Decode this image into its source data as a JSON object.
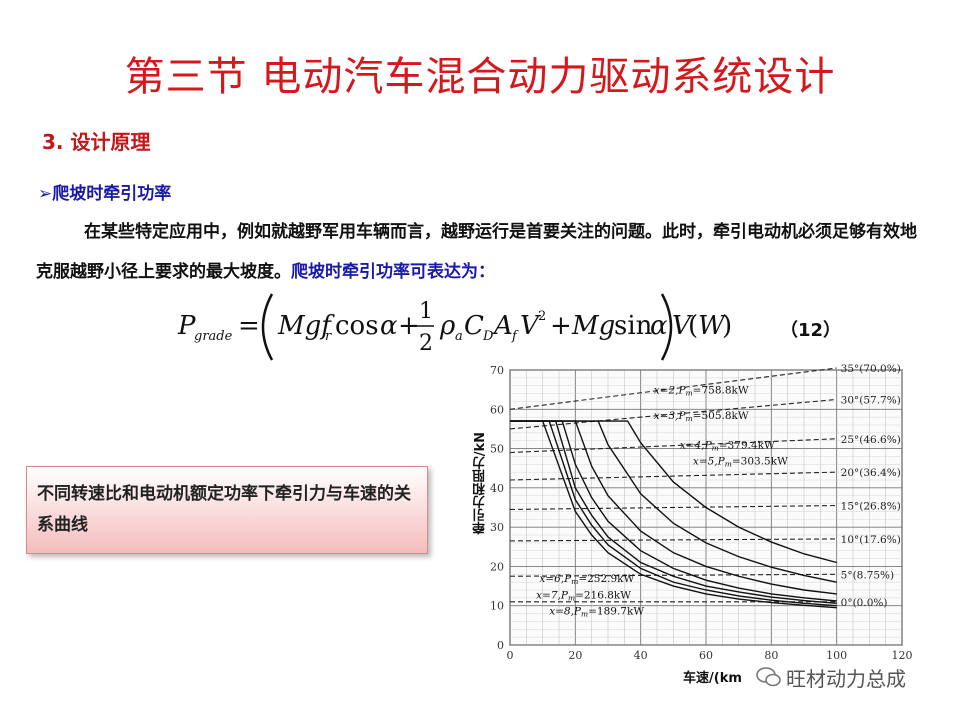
{
  "slide": {
    "title": "第三节  电动汽车混合动力驱动系统设计",
    "section": "3. 设计原理",
    "subhead": "爬坡时牵引功率",
    "para_main": "在某些特定应用中，例如就越野军用车辆而言，越野运行是首要关注的问题。此时，牵引电动机必须足够有效地克服越野小径上要求的最大坡度。",
    "para_highlight": "爬坡时牵引功率可表达为：",
    "eq_number": "（12）",
    "callout": "不同转速比和电动机额定功率下牵引力与车速的关系曲线",
    "watermark": "旺材动力总成",
    "colors": {
      "title": "#d6171b",
      "highlight": "#1a1aa8",
      "callout_bottom": "#f4bcbc"
    },
    "icons": [
      "bullet-arrow-icon",
      "wechat-icon"
    ]
  },
  "chart_data": {
    "type": "line",
    "xlabel": "车速/(km",
    "ylabel": "牵引力和阻力/kN",
    "xlim": [
      0,
      120
    ],
    "ylim": [
      0,
      70
    ],
    "xticks": [
      "0",
      "20",
      "40",
      "60",
      "80",
      "100",
      "120"
    ],
    "yticks": [
      "0",
      "10",
      "20",
      "30",
      "40",
      "50",
      "60",
      "70"
    ],
    "grid": true,
    "traction_series": [
      {
        "label": "x=2,P",
        "label_sub": "m",
        "label_rest": "=758.8kW",
        "x": [
          0,
          36,
          40,
          50,
          60,
          70,
          80,
          90,
          100
        ],
        "y": [
          57,
          57,
          51.5,
          41.5,
          35,
          30,
          26.2,
          23.2,
          21
        ]
      },
      {
        "label": "x=3,P",
        "label_sub": "m",
        "label_rest": "=505.8kW",
        "x": [
          0,
          27,
          30,
          40,
          50,
          60,
          70,
          80,
          90,
          100
        ],
        "y": [
          57,
          57,
          51,
          38.5,
          31,
          26,
          22.5,
          19.8,
          17.7,
          16
        ]
      },
      {
        "label": "x=4,P",
        "label_sub": "m",
        "label_rest": "=379.4kW",
        "x": [
          0,
          20,
          25,
          30,
          40,
          50,
          60,
          70,
          80,
          90,
          100
        ],
        "y": [
          57,
          57,
          45.5,
          38,
          29,
          23.5,
          20,
          17.5,
          15.5,
          14,
          13
        ]
      },
      {
        "label": "x=5,P",
        "label_sub": "m",
        "label_rest": "=303.5kW",
        "x": [
          0,
          16,
          20,
          25,
          30,
          40,
          50,
          60,
          70,
          80,
          90,
          100
        ],
        "y": [
          57,
          57,
          46,
          37.5,
          31.5,
          24,
          19.5,
          16.5,
          14.5,
          13,
          12,
          11.2
        ]
      },
      {
        "label": "x=6,P",
        "label_sub": "m",
        "label_rest": "=252.9kW",
        "x": [
          0,
          14,
          20,
          25,
          30,
          40,
          50,
          60,
          70,
          80,
          90,
          100
        ],
        "y": [
          57,
          57,
          40,
          33,
          27.5,
          21,
          17.5,
          15,
          13.5,
          12.2,
          11.3,
          10.6
        ]
      },
      {
        "label": "x=7,P",
        "label_sub": "m",
        "label_rest": "=216.8kW",
        "x": [
          0,
          12,
          20,
          25,
          30,
          40,
          50,
          60,
          70,
          80,
          90,
          100
        ],
        "y": [
          57,
          57,
          37,
          30.5,
          25.5,
          19.5,
          16,
          14,
          12.5,
          11.4,
          10.6,
          10
        ]
      },
      {
        "label": "x=8,P",
        "label_sub": "m",
        "label_rest": "=189.7kW",
        "x": [
          0,
          10,
          20,
          25,
          30,
          40,
          50,
          60,
          70,
          80,
          90,
          100
        ],
        "y": [
          57,
          57,
          34,
          28,
          23.5,
          18,
          15,
          13,
          11.7,
          10.8,
          10.1,
          9.5
        ]
      }
    ],
    "grade_series": [
      {
        "label": "35°(70.0%)",
        "y0": 60,
        "y1": 70.5
      },
      {
        "label": "30°(57.7%)",
        "y0": 55,
        "y1": 62.5
      },
      {
        "label": "25°(46.6%)",
        "y0": 49,
        "y1": 52.5
      },
      {
        "label": "20°(36.4%)",
        "y0": 42,
        "y1": 44
      },
      {
        "label": "15°(26.8%)",
        "y0": 34.5,
        "y1": 35.5
      },
      {
        "label": "10°(17.6%)",
        "y0": 26.5,
        "y1": 27
      },
      {
        "label": "5°(8.75%)",
        "y0": 17.5,
        "y1": 18
      },
      {
        "label": "0°(0.0%)",
        "y0": 11,
        "y1": 11
      }
    ]
  }
}
